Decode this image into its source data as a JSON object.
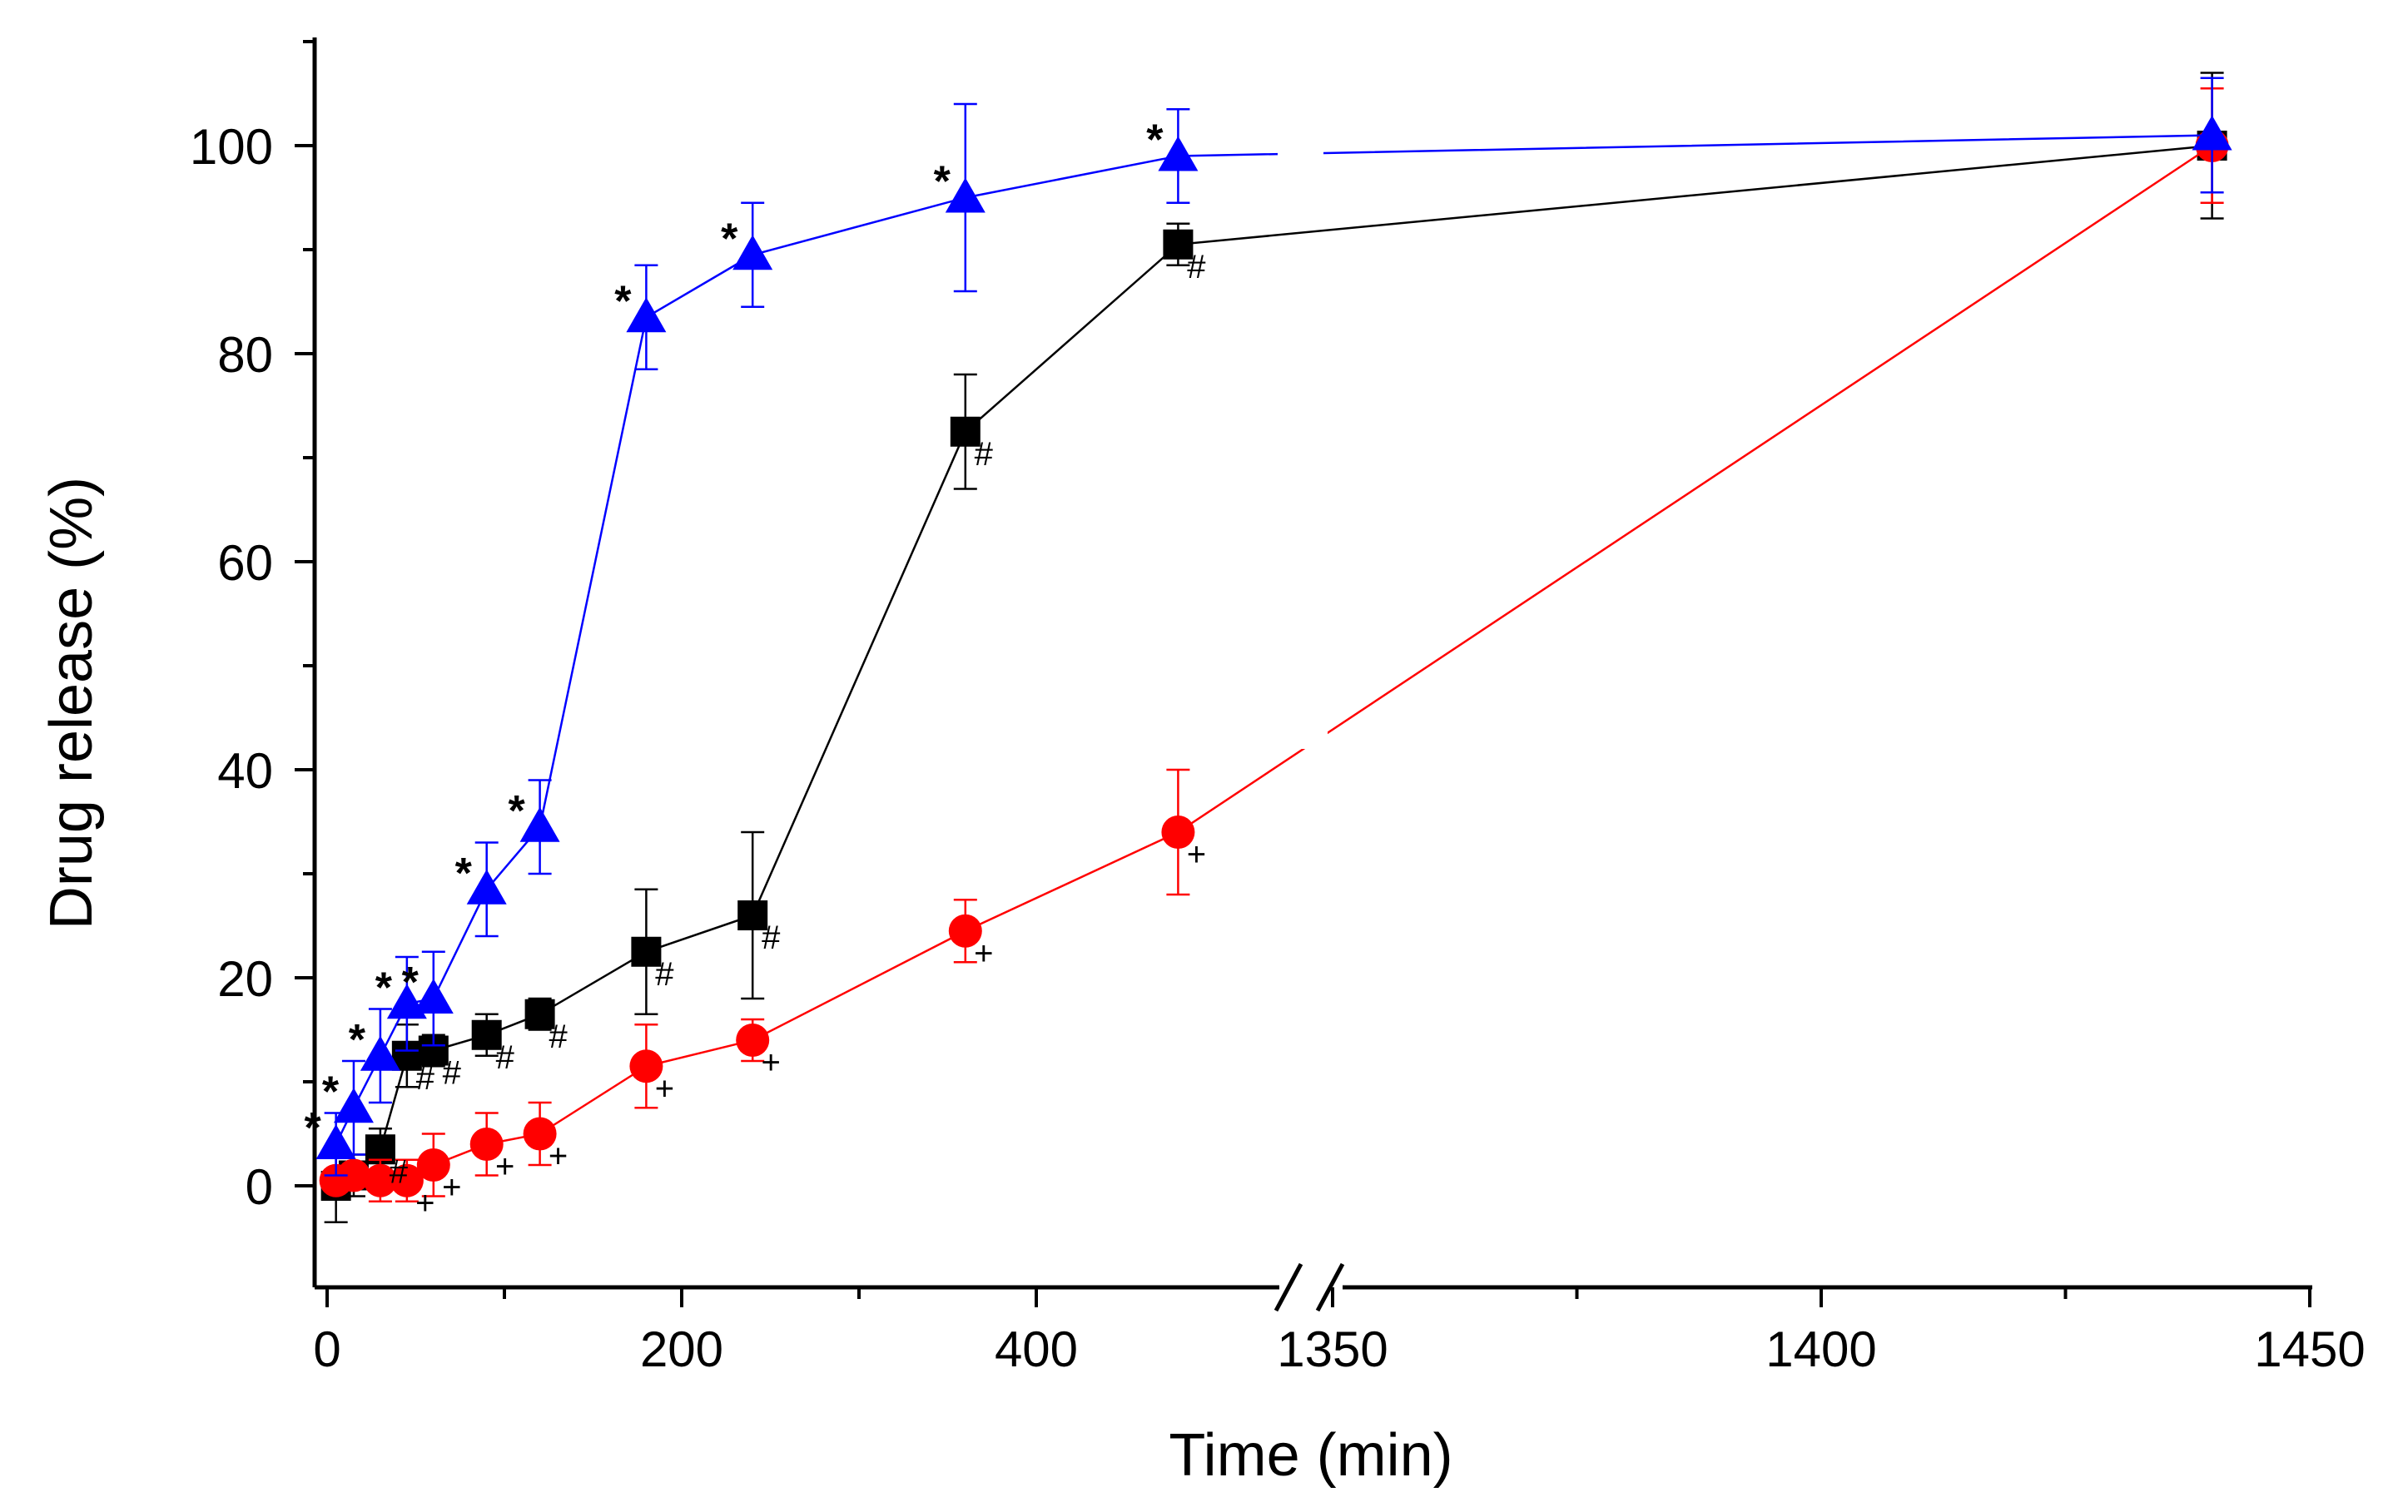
{
  "chart_data": {
    "type": "line",
    "title": "",
    "xlabel": "Time (min)",
    "ylabel": "Drug release (%)",
    "ylim": [
      -10,
      110
    ],
    "yticks": [
      0,
      20,
      40,
      60,
      80,
      100
    ],
    "x_break": {
      "before_range": [
        0,
        480
      ],
      "after_range": [
        1350,
        1450
      ]
    },
    "xticks_before": [
      0,
      200,
      400
    ],
    "xticks_after": [
      1350,
      1400,
      1450
    ],
    "xtick_labels": [
      "0",
      "200",
      "400",
      "1350",
      "1400",
      "1450"
    ],
    "series": [
      {
        "name": "black squares",
        "color": "#000000",
        "marker": "square",
        "annotation": "#",
        "x": [
          5,
          15,
          30,
          45,
          60,
          90,
          120,
          180,
          240,
          360,
          480,
          1440
        ],
        "y": [
          0,
          1,
          3.5,
          12.5,
          13,
          14.5,
          16.5,
          22.5,
          26,
          72.5,
          90.5,
          100
        ],
        "err": [
          3.5,
          2,
          2,
          3,
          1.5,
          2,
          1.5,
          6,
          8,
          5.5,
          2,
          7
        ],
        "annotated": [
          false,
          false,
          true,
          true,
          true,
          true,
          true,
          true,
          true,
          true,
          true,
          false
        ]
      },
      {
        "name": "red circles",
        "color": "#ff0000",
        "marker": "circle",
        "annotation": "+",
        "x": [
          5,
          15,
          30,
          45,
          60,
          90,
          120,
          180,
          240,
          360,
          480,
          1440
        ],
        "y": [
          0.5,
          1,
          0.5,
          0.5,
          2,
          4,
          5,
          11.5,
          14,
          24.5,
          34,
          100
        ],
        "err": [
          1,
          1,
          2,
          2,
          3,
          3,
          3,
          4,
          2,
          3,
          6,
          5.5
        ],
        "annotated": [
          false,
          false,
          false,
          true,
          true,
          true,
          true,
          true,
          true,
          true,
          true,
          false
        ]
      },
      {
        "name": "blue triangles",
        "color": "#0000ff",
        "marker": "triangle",
        "annotation": "*",
        "x": [
          5,
          15,
          30,
          45,
          60,
          90,
          120,
          180,
          240,
          360,
          480,
          1440
        ],
        "y": [
          4,
          7.5,
          12.5,
          17.5,
          18,
          28.5,
          34.5,
          83.5,
          89.5,
          95,
          99,
          101
        ],
        "err": [
          3,
          4.5,
          4.5,
          4.5,
          4.5,
          4.5,
          4.5,
          5,
          5,
          9,
          4.5,
          5.5
        ],
        "annotated": [
          true,
          true,
          true,
          true,
          true,
          true,
          true,
          true,
          true,
          true,
          true,
          false
        ]
      }
    ]
  }
}
